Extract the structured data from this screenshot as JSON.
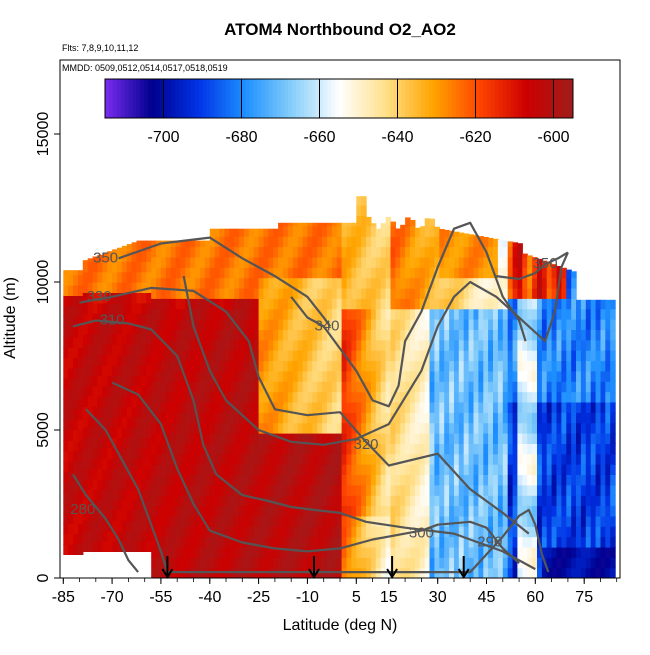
{
  "chart_data": {
    "type": "heatmap",
    "title": "ATOM4 Northbound O2_AO2",
    "subtitle_flights": "Flts: 7,8,9,10,11,12",
    "subtitle_dates": "MMDD: 0509,0512,0514,0517,0518,0519",
    "xlabel": "Latitude (deg N)",
    "ylabel": "Altitude (m)",
    "xlim": [
      -86,
      86
    ],
    "ylim": [
      0,
      17500
    ],
    "x_ticks": [
      -85,
      -70,
      -55,
      -40,
      -25,
      -10,
      5,
      15,
      30,
      45,
      60,
      75
    ],
    "x_tick_labels": [
      "-85",
      "-70",
      "-55",
      "-40",
      "-25",
      "-10",
      "5",
      "15",
      "30",
      "45",
      "60",
      "75"
    ],
    "y_ticks": [
      0,
      5000,
      10000,
      15000
    ],
    "y_tick_labels": [
      "0",
      "5000",
      "10000",
      "15000"
    ],
    "colorbar": {
      "range": [
        -715,
        -595
      ],
      "ticks": [
        -700,
        -680,
        -660,
        -640,
        -620,
        -600
      ],
      "tick_labels": [
        "-700",
        "-680",
        "-660",
        "-640",
        "-620",
        "-600"
      ],
      "colors": [
        "#7a2cf0",
        "#00008e",
        "#0033e6",
        "#1e90ff",
        "#87cefa",
        "#ffffff",
        "#ffe08a",
        "#ffa500",
        "#ff4500",
        "#cc0000",
        "#a01c1c"
      ]
    },
    "profile_arrows_lat": [
      -53,
      -8,
      16,
      38
    ],
    "contours": [
      {
        "label": "350",
        "path": [
          [
            -68,
            10800
          ],
          [
            -55,
            11300
          ],
          [
            -40,
            11500
          ],
          [
            -30,
            10800
          ],
          [
            -20,
            10200
          ],
          [
            -10,
            9500
          ],
          [
            -5,
            8800
          ],
          [
            -3,
            8500
          ]
        ],
        "label_at": [
          -72,
          10800
        ]
      },
      {
        "label": "330",
        "path": [
          [
            -80,
            9300
          ],
          [
            -70,
            9500
          ],
          [
            -58,
            9800
          ],
          [
            -45,
            9700
          ],
          [
            -35,
            9000
          ],
          [
            -28,
            8000
          ],
          [
            -25,
            6800
          ],
          [
            -20,
            5700
          ],
          [
            -10,
            5500
          ],
          [
            0,
            5600
          ],
          [
            8,
            4600
          ],
          [
            15,
            3800
          ],
          [
            30,
            4200
          ],
          [
            40,
            3000
          ],
          [
            50,
            2200
          ],
          [
            58,
            1500
          ]
        ],
        "label_at": [
          -74,
          9500
        ]
      },
      {
        "label": "310",
        "path": [
          [
            -82,
            8500
          ],
          [
            -75,
            8700
          ],
          [
            -65,
            8600
          ],
          [
            -58,
            8400
          ],
          [
            -50,
            7500
          ],
          [
            -45,
            6000
          ],
          [
            -42,
            4500
          ],
          [
            -38,
            3500
          ],
          [
            -30,
            2800
          ],
          [
            -22,
            2600
          ],
          [
            -15,
            2400
          ],
          [
            -8,
            2300
          ],
          [
            0,
            2200
          ],
          [
            8,
            1900
          ],
          [
            20,
            1700
          ],
          [
            35,
            1500
          ],
          [
            50,
            900
          ],
          [
            60,
            300
          ]
        ],
        "label_at": [
          -70,
          8700
        ]
      },
      {
        "label": "340",
        "path": [
          [
            -15,
            9500
          ],
          [
            -10,
            8800
          ],
          [
            -5,
            8500
          ],
          [
            5,
            7000
          ],
          [
            10,
            6000
          ],
          [
            15,
            5800
          ],
          [
            18,
            6500
          ],
          [
            20,
            8000
          ],
          [
            25,
            9000
          ],
          [
            30,
            10500
          ],
          [
            35,
            11800
          ],
          [
            40,
            12000
          ],
          [
            45,
            11000
          ],
          [
            50,
            9500
          ],
          [
            55,
            8700
          ],
          [
            57,
            8000
          ]
        ],
        "label_at": [
          -4,
          8500
        ]
      },
      {
        "label": "320",
        "path": [
          [
            -48,
            10200
          ],
          [
            -45,
            8500
          ],
          [
            -40,
            7000
          ],
          [
            -35,
            6000
          ],
          [
            -25,
            5000
          ],
          [
            -15,
            4600
          ],
          [
            -5,
            4500
          ],
          [
            5,
            4700
          ],
          [
            15,
            5200
          ],
          [
            25,
            7000
          ],
          [
            30,
            8500
          ],
          [
            35,
            9500
          ],
          [
            40,
            10000
          ],
          [
            48,
            9500
          ],
          [
            53,
            9000
          ],
          [
            58,
            8500
          ],
          [
            63,
            8000
          ],
          [
            66,
            9000
          ],
          [
            68,
            10500
          ],
          [
            70,
            11000
          ]
        ],
        "label_at": [
          8,
          4500
        ]
      },
      {
        "label": "300",
        "path": [
          [
            -70,
            6600
          ],
          [
            -62,
            6200
          ],
          [
            -55,
            5200
          ],
          [
            -50,
            3700
          ],
          [
            -45,
            2500
          ],
          [
            -40,
            1600
          ],
          [
            -30,
            1200
          ],
          [
            -20,
            1000
          ],
          [
            -10,
            900
          ],
          [
            0,
            1000
          ],
          [
            10,
            1300
          ],
          [
            20,
            1500
          ],
          [
            25,
            1600
          ],
          [
            30,
            1800
          ],
          [
            40,
            1900
          ],
          [
            45,
            1700
          ],
          [
            50,
            1000
          ],
          [
            55,
            500
          ]
        ],
        "label_at": [
          25,
          1500
        ]
      },
      {
        "label": "290",
        "path": [
          [
            -78,
            5700
          ],
          [
            -72,
            5000
          ],
          [
            -68,
            4200
          ],
          [
            -62,
            3000
          ],
          [
            -58,
            1800
          ],
          [
            -55,
            900
          ],
          [
            -53,
            200
          ],
          [
            40,
            200
          ],
          [
            50,
            1400
          ],
          [
            55,
            2100
          ],
          [
            58,
            2300
          ],
          [
            60,
            1800
          ],
          [
            62,
            800
          ],
          [
            64,
            200
          ]
        ],
        "label_at": [
          46,
          1200
        ]
      },
      {
        "label": "280",
        "path": [
          [
            -82,
            3500
          ],
          [
            -78,
            2800
          ],
          [
            -72,
            2000
          ],
          [
            -68,
            1300
          ],
          [
            -65,
            600
          ],
          [
            -62,
            200
          ]
        ],
        "label_at": [
          -79,
          2300
        ]
      },
      {
        "label": "350",
        "path": [
          [
            48,
            10200
          ],
          [
            55,
            10100
          ],
          [
            60,
            10300
          ],
          [
            63,
            10600
          ],
          [
            67,
            10800
          ],
          [
            70,
            11000
          ]
        ],
        "label_at": [
          63,
          10600
        ]
      }
    ]
  }
}
